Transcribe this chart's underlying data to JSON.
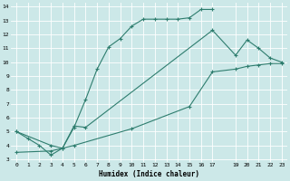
{
  "xlabel": "Humidex (Indice chaleur)",
  "bg_color": "#cce8e8",
  "grid_color": "#ffffff",
  "line_color": "#2e7d6e",
  "xlim": [
    -0.5,
    23.5
  ],
  "ylim": [
    2.8,
    14.3
  ],
  "xticks": [
    0,
    1,
    2,
    3,
    4,
    5,
    6,
    7,
    8,
    9,
    10,
    11,
    12,
    13,
    14,
    15,
    16,
    17,
    19,
    20,
    21,
    22,
    23
  ],
  "yticks": [
    3,
    4,
    5,
    6,
    7,
    8,
    9,
    10,
    11,
    12,
    13,
    14
  ],
  "curve1_x": [
    0,
    1,
    2,
    3,
    4,
    5,
    6,
    7,
    8,
    9,
    10,
    11,
    12,
    13,
    14,
    15,
    16,
    17
  ],
  "curve1_y": [
    5.0,
    4.5,
    4.0,
    3.3,
    3.8,
    5.3,
    7.3,
    9.5,
    11.1,
    11.7,
    12.6,
    13.1,
    13.1,
    13.1,
    13.1,
    13.2,
    13.8,
    13.8
  ],
  "curve2_x": [
    0,
    3,
    4,
    5,
    6,
    17,
    19,
    20,
    21,
    22,
    23
  ],
  "curve2_y": [
    5.0,
    4.0,
    3.8,
    5.4,
    5.3,
    12.3,
    10.5,
    11.6,
    11.0,
    10.3,
    10.0
  ],
  "curve3_x": [
    0,
    3,
    5,
    10,
    15,
    17,
    19,
    20,
    21,
    22,
    23
  ],
  "curve3_y": [
    3.5,
    3.6,
    4.0,
    5.2,
    6.8,
    9.3,
    9.5,
    9.7,
    9.8,
    9.9,
    9.9
  ]
}
